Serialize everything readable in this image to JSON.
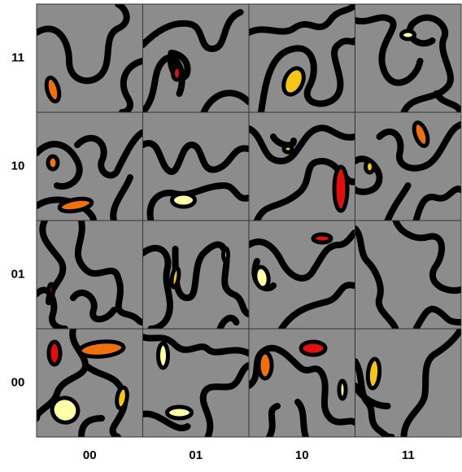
{
  "row_labels": [
    "11",
    "10",
    "01",
    "00"
  ],
  "column_labels": [
    "00",
    "01",
    "10",
    "11"
  ]
}
